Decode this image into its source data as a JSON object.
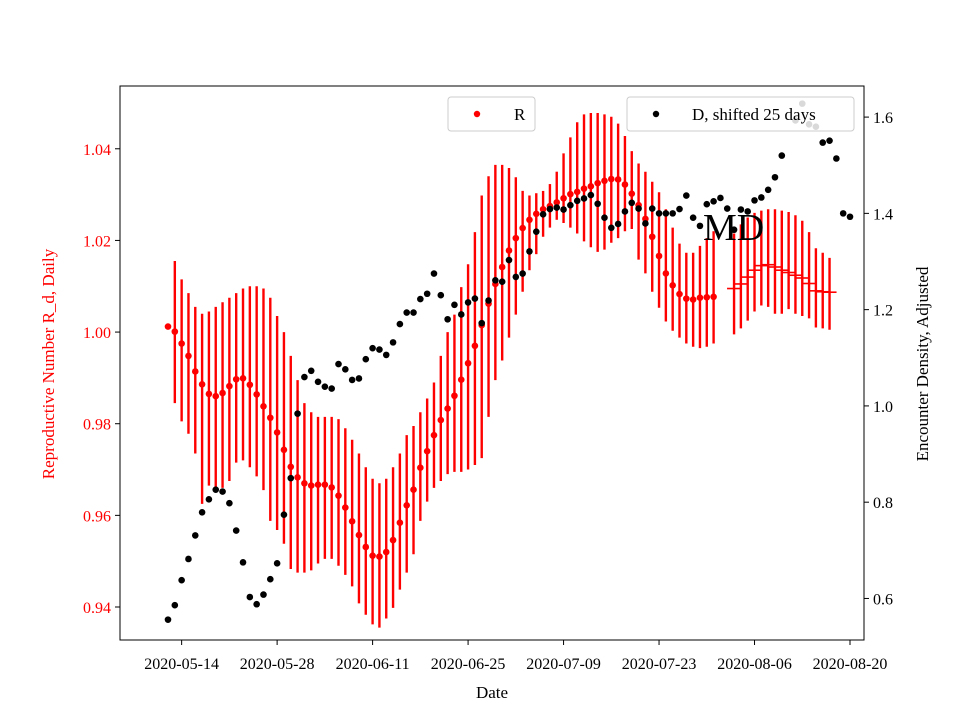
{
  "chart_data": {
    "type": "scatter",
    "annotation": "MD",
    "xlabel": "Date",
    "ylabel_left": "Reproductive Number R_d, Daily",
    "ylabel_right": "Encounter Density, Adjusted",
    "x_start": "2020-05-12",
    "x_end": "2020-08-20",
    "x_ticks": [
      "2020-05-14",
      "2020-05-28",
      "2020-06-11",
      "2020-06-25",
      "2020-07-09",
      "2020-07-23",
      "2020-08-06",
      "2020-08-20"
    ],
    "ylim_left": [
      0.9328,
      1.0537
    ],
    "yticks_left": [
      0.94,
      0.96,
      0.98,
      1.0,
      1.02,
      1.04
    ],
    "yticks_left_labels": [
      "0.94",
      "0.96",
      "0.98",
      "1.00",
      "1.02",
      "1.04"
    ],
    "ylim_right": [
      0.5137,
      1.6646
    ],
    "yticks_right": [
      0.6,
      0.8,
      1.0,
      1.2,
      1.4,
      1.6
    ],
    "yticks_right_labels": [
      "0.6",
      "0.8",
      "1.0",
      "1.2",
      "1.4",
      "1.6"
    ],
    "legend": {
      "r_label": "R",
      "d_label": "D, shifted 25 days"
    },
    "colors": {
      "r": "#ff0000",
      "d": "#000000",
      "axis": "#000000"
    },
    "series_r": {
      "name": "R",
      "start": "2020-05-12",
      "values": [
        1.0012,
        1.0001,
        0.9975,
        0.9948,
        0.9914,
        0.9886,
        0.9865,
        0.986,
        0.9867,
        0.9882,
        0.9897,
        0.9899,
        0.9885,
        0.9864,
        0.9838,
        0.9813,
        0.9781,
        0.9743,
        0.9706,
        0.9683,
        0.967,
        0.9665,
        0.9667,
        0.9667,
        0.9661,
        0.9643,
        0.9617,
        0.9587,
        0.9557,
        0.9531,
        0.9512,
        0.951,
        0.952,
        0.9546,
        0.9584,
        0.9622,
        0.9656,
        0.9704,
        0.974,
        0.9775,
        0.9808,
        0.9833,
        0.9861,
        0.9896,
        0.9932,
        0.997,
        1.0015,
        1.0062,
        1.0105,
        1.0142,
        1.0178,
        1.0205,
        1.0227,
        1.0245,
        1.0258,
        1.0268,
        1.0275,
        1.0283,
        1.0292,
        1.0301,
        1.0306,
        1.0313,
        1.0318,
        1.0325,
        1.033,
        1.0334,
        1.0333,
        1.0322,
        1.0302,
        1.0277,
        1.0247,
        1.0208,
        1.0166,
        1.0128,
        1.0102,
        1.0083,
        1.0073,
        1.0071,
        1.0075,
        1.0076,
        1.0077
      ],
      "err_low": [
        null,
        0.9845,
        0.9805,
        0.9778,
        0.9735,
        0.9625,
        0.9665,
        0.9655,
        0.966,
        0.9675,
        0.9715,
        0.972,
        0.9705,
        0.9685,
        0.9655,
        0.9588,
        0.9568,
        0.9538,
        0.9483,
        0.9475,
        0.9475,
        0.948,
        0.9495,
        0.9505,
        0.9505,
        0.949,
        0.947,
        0.9445,
        0.9408,
        0.9383,
        0.9362,
        0.9355,
        0.9375,
        0.9398,
        0.9438,
        0.9475,
        0.9515,
        0.9588,
        0.963,
        0.966,
        0.9675,
        0.969,
        0.9695,
        0.9695,
        0.97,
        0.971,
        0.9725,
        0.9815,
        0.9895,
        0.9938,
        0.9988,
        1.0038,
        1.0088,
        1.0135,
        1.017,
        1.0208,
        1.0228,
        1.0245,
        1.0238,
        1.0228,
        1.0215,
        1.0198,
        1.0185,
        1.0175,
        1.018,
        1.0195,
        1.0205,
        1.022,
        1.0225,
        1.0158,
        1.0128,
        1.0088,
        1.0053,
        1.0023,
        1.0003,
        0.9988,
        0.9975,
        0.9968,
        0.9965,
        0.9968,
        0.9975
      ],
      "err_high": [
        null,
        1.0155,
        1.0115,
        1.0085,
        1.0055,
        1.004,
        1.0045,
        1.0055,
        1.0065,
        1.0075,
        1.0085,
        1.0095,
        1.01,
        1.01,
        1.0095,
        1.0075,
        1.0035,
        1.0,
        0.9948,
        0.9895,
        0.9845,
        0.9825,
        0.9815,
        0.9815,
        0.9815,
        0.981,
        0.979,
        0.9765,
        0.9735,
        0.9705,
        0.968,
        0.967,
        0.968,
        0.9705,
        0.9735,
        0.9775,
        0.9795,
        0.9825,
        0.9855,
        0.989,
        0.9948,
        1.0,
        1.0038,
        1.0098,
        1.0148,
        1.0218,
        1.0298,
        1.034,
        1.0365,
        1.0365,
        1.0358,
        1.0338,
        1.0308,
        1.0298,
        1.0303,
        1.0308,
        1.0323,
        1.035,
        1.039,
        1.0425,
        1.0458,
        1.0475,
        1.0478,
        1.0478,
        1.0475,
        1.047,
        1.0455,
        1.0428,
        1.0395,
        1.0368,
        1.035,
        1.0328,
        1.0305,
        1.0268,
        1.0228,
        1.0193,
        1.0173,
        1.0173,
        1.0188,
        1.0205,
        1.022
      ]
    },
    "series_r_tail": {
      "start": "2020-08-03",
      "values": [
        1.0095,
        1.0105,
        1.012,
        1.0135,
        1.0145,
        1.0147,
        1.0142,
        1.0135,
        1.013,
        1.0124,
        1.0118,
        1.0106,
        1.009,
        1.0088,
        1.0087
      ],
      "err_low": [
        0.9995,
        1.0008,
        1.0025,
        1.0045,
        1.0058,
        1.0055,
        1.004,
        1.004,
        1.005,
        1.004,
        1.0035,
        1.003,
        1.001,
        1.0008,
        1.0005
      ],
      "err_high": [
        1.0215,
        1.0235,
        1.025,
        1.026,
        1.0265,
        1.0268,
        1.0268,
        1.0265,
        1.0262,
        1.0255,
        1.0243,
        1.0218,
        1.0183,
        1.0173,
        1.0162
      ]
    },
    "series_d": {
      "name": "D, shifted 25 days",
      "points": [
        [
          "2020-05-12",
          0.556
        ],
        [
          "2020-05-13",
          0.586
        ],
        [
          "2020-05-14",
          0.638
        ],
        [
          "2020-05-15",
          0.682
        ],
        [
          "2020-05-16",
          0.731
        ],
        [
          "2020-05-17",
          0.779
        ],
        [
          "2020-05-18",
          0.806
        ],
        [
          "2020-05-19",
          0.826
        ],
        [
          "2020-05-20",
          0.822
        ],
        [
          "2020-05-21",
          0.798
        ],
        [
          "2020-05-22",
          0.741
        ],
        [
          "2020-05-23",
          0.675
        ],
        [
          "2020-05-24",
          0.603
        ],
        [
          "2020-05-25",
          0.588
        ],
        [
          "2020-05-26",
          0.608
        ],
        [
          "2020-05-27",
          0.64
        ],
        [
          "2020-05-28",
          0.673
        ],
        [
          "2020-05-29",
          0.774
        ],
        [
          "2020-05-30",
          0.85
        ],
        [
          "2020-05-31",
          0.984
        ],
        [
          "2020-06-01",
          1.06
        ],
        [
          "2020-06-02",
          1.073
        ],
        [
          "2020-06-03",
          1.05
        ],
        [
          "2020-06-04",
          1.04
        ],
        [
          "2020-06-05",
          1.036
        ],
        [
          "2020-06-06",
          1.087
        ],
        [
          "2020-06-07",
          1.076
        ],
        [
          "2020-06-08",
          1.054
        ],
        [
          "2020-06-09",
          1.057
        ],
        [
          "2020-06-10",
          1.097
        ],
        [
          "2020-06-11",
          1.12
        ],
        [
          "2020-06-12",
          1.117
        ],
        [
          "2020-06-13",
          1.106
        ],
        [
          "2020-06-14",
          1.132
        ],
        [
          "2020-06-15",
          1.17
        ],
        [
          "2020-06-16",
          1.194
        ],
        [
          "2020-06-17",
          1.194
        ],
        [
          "2020-06-18",
          1.222
        ],
        [
          "2020-06-19",
          1.233
        ],
        [
          "2020-06-20",
          1.275
        ],
        [
          "2020-06-21",
          1.23
        ],
        [
          "2020-06-22",
          1.18
        ],
        [
          "2020-06-23",
          1.21
        ],
        [
          "2020-06-24",
          1.19
        ],
        [
          "2020-06-25",
          1.215
        ],
        [
          "2020-06-26",
          1.223
        ],
        [
          "2020-06-27",
          1.172
        ],
        [
          "2020-06-28",
          1.219
        ],
        [
          "2020-06-29",
          1.261
        ],
        [
          "2020-06-30",
          1.258
        ],
        [
          "2020-07-01",
          1.303
        ],
        [
          "2020-07-02",
          1.268
        ],
        [
          "2020-07-03",
          1.275
        ],
        [
          "2020-07-04",
          1.321
        ],
        [
          "2020-07-05",
          1.362
        ],
        [
          "2020-07-06",
          1.398
        ],
        [
          "2020-07-07",
          1.409
        ],
        [
          "2020-07-08",
          1.412
        ],
        [
          "2020-07-09",
          1.408
        ],
        [
          "2020-07-10",
          1.417
        ],
        [
          "2020-07-11",
          1.426
        ],
        [
          "2020-07-12",
          1.431
        ],
        [
          "2020-07-13",
          1.438
        ],
        [
          "2020-07-14",
          1.42
        ],
        [
          "2020-07-15",
          1.391
        ],
        [
          "2020-07-16",
          1.37
        ],
        [
          "2020-07-17",
          1.378
        ],
        [
          "2020-07-18",
          1.404
        ],
        [
          "2020-07-19",
          1.422
        ],
        [
          "2020-07-20",
          1.41
        ],
        [
          "2020-07-21",
          1.379
        ],
        [
          "2020-07-22",
          1.41
        ],
        [
          "2020-07-23",
          1.4
        ],
        [
          "2020-07-24",
          1.4
        ],
        [
          "2020-07-25",
          1.4
        ],
        [
          "2020-07-26",
          1.409
        ],
        [
          "2020-07-27",
          1.437
        ],
        [
          "2020-07-28",
          1.391
        ],
        [
          "2020-07-29",
          1.374
        ],
        [
          "2020-07-30",
          1.419
        ],
        [
          "2020-07-31",
          1.425
        ],
        [
          "2020-08-01",
          1.432
        ],
        [
          "2020-08-02",
          1.41
        ],
        [
          "2020-08-03",
          1.366
        ],
        [
          "2020-08-04",
          1.408
        ],
        [
          "2020-08-05",
          1.404
        ],
        [
          "2020-08-06",
          1.427
        ],
        [
          "2020-08-07",
          1.433
        ],
        [
          "2020-08-08",
          1.449
        ],
        [
          "2020-08-09",
          1.475
        ],
        [
          "2020-08-10",
          1.52
        ],
        [
          "2020-08-12",
          1.593
        ],
        [
          "2020-08-13",
          1.628
        ],
        [
          "2020-08-14",
          1.585
        ],
        [
          "2020-08-15",
          1.58
        ],
        [
          "2020-08-16",
          1.547
        ],
        [
          "2020-08-17",
          1.551
        ],
        [
          "2020-08-18",
          1.514
        ],
        [
          "2020-08-19",
          1.4
        ],
        [
          "2020-08-20",
          1.393
        ]
      ]
    }
  }
}
